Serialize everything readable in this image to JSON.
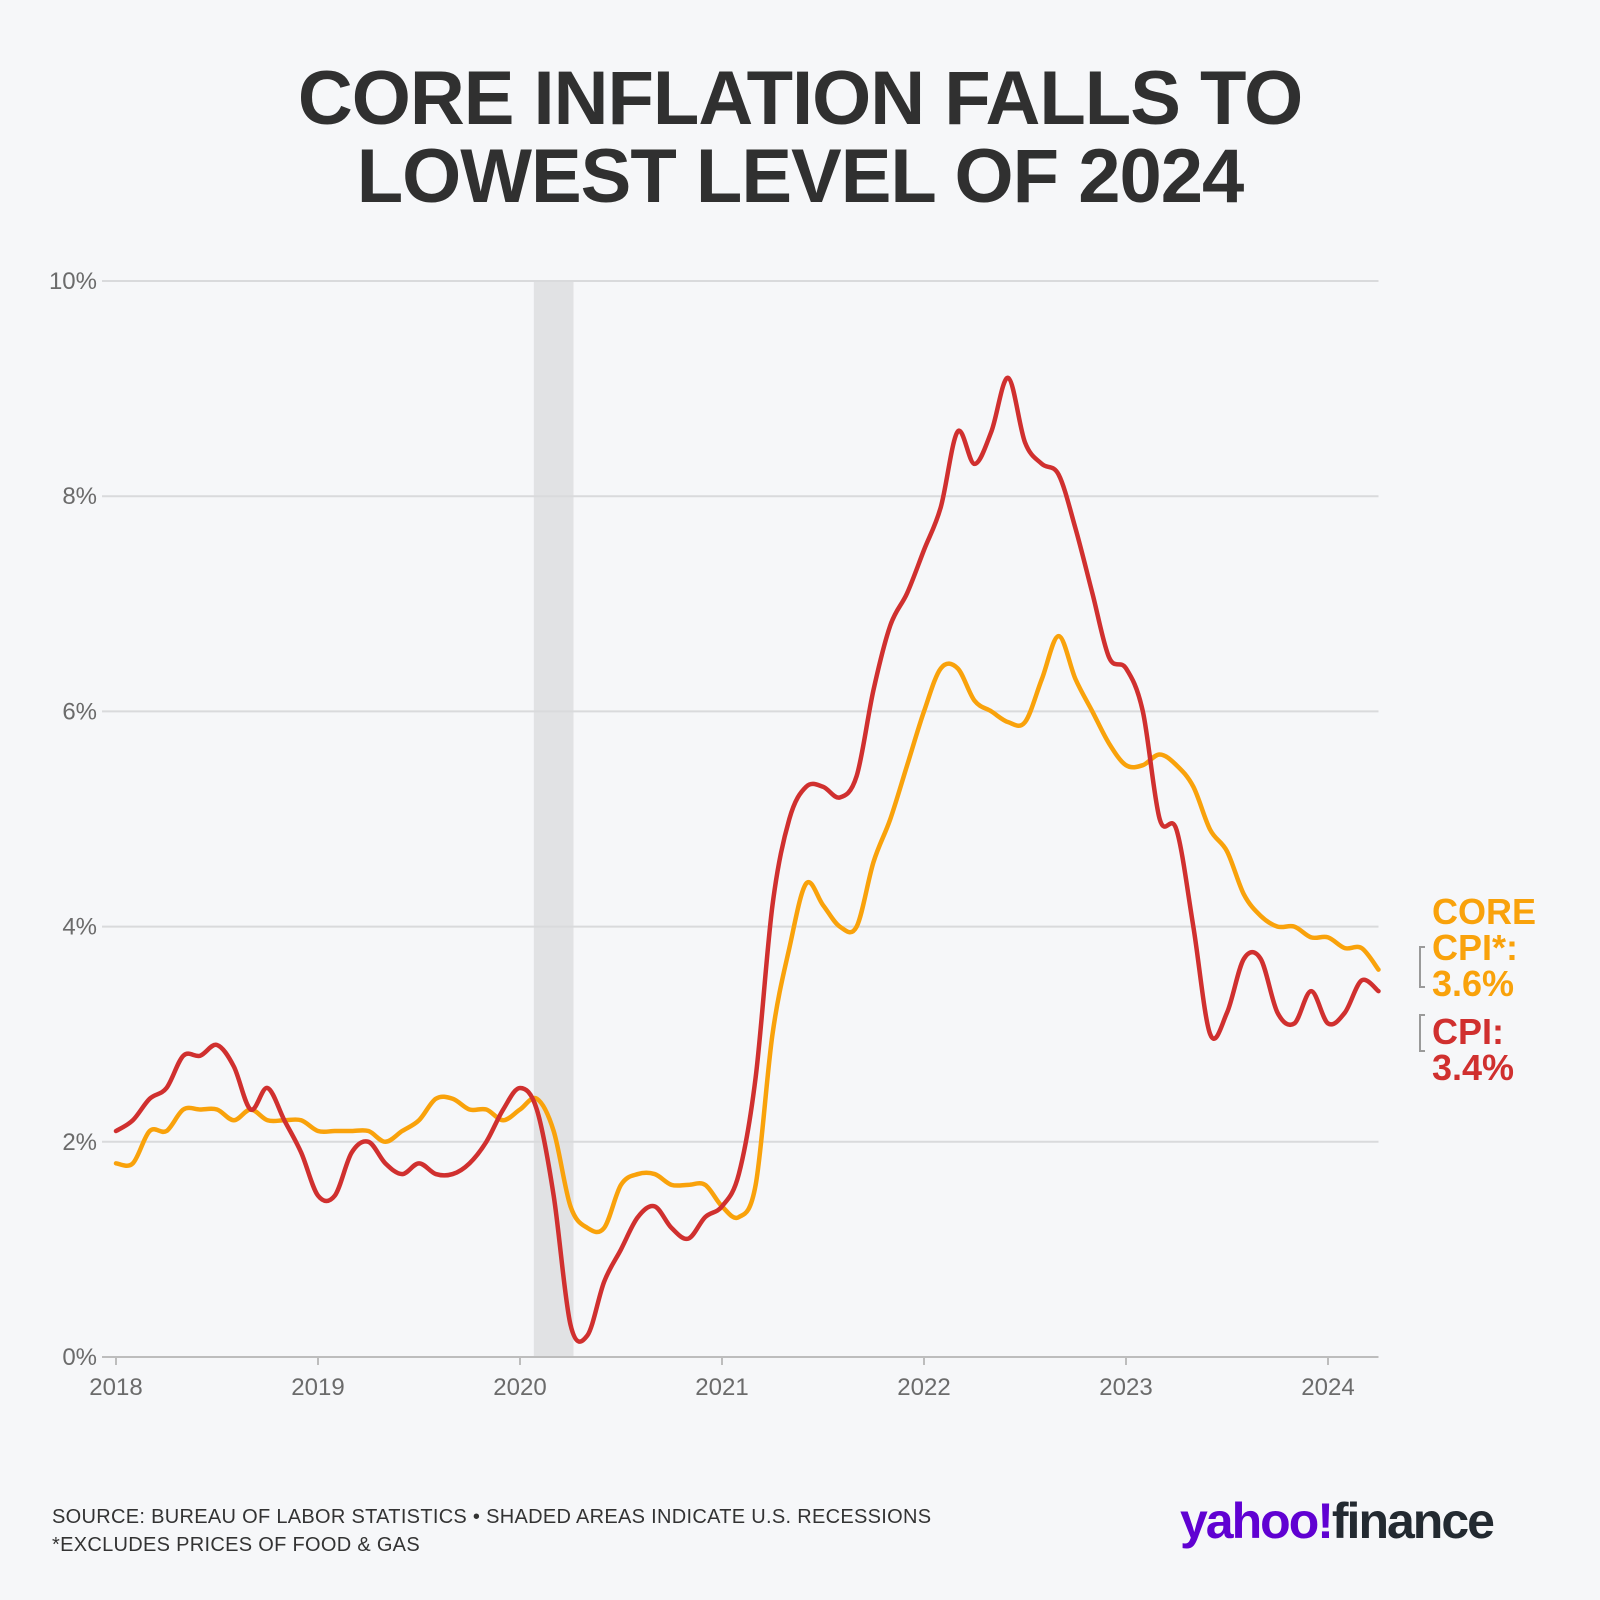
{
  "chart_data": {
    "type": "line",
    "title": [
      "CORE INFLATION FALLS TO",
      "LOWEST LEVEL OF 2024"
    ],
    "xlabel": "",
    "ylabel": "",
    "x_start": "2018-01",
    "x_end": "2024-04",
    "frequency": "monthly",
    "xticks": [
      "2018",
      "2019",
      "2020",
      "2021",
      "2022",
      "2023",
      "2024"
    ],
    "yticks": [
      "0%",
      "2%",
      "4%",
      "6%",
      "8%",
      "10%"
    ],
    "ylim": [
      0,
      10
    ],
    "grid": true,
    "recession_shading": {
      "start_month_index": 25,
      "end_month_index": 27
    },
    "series": [
      {
        "name": "CPI",
        "color": "#d0302f",
        "end_label": [
          "CPI:",
          "3.4%"
        ],
        "values": [
          2.1,
          2.2,
          2.4,
          2.5,
          2.8,
          2.8,
          2.9,
          2.7,
          2.3,
          2.5,
          2.2,
          1.9,
          1.5,
          1.5,
          1.9,
          2.0,
          1.8,
          1.7,
          1.8,
          1.7,
          1.7,
          1.8,
          2.0,
          2.3,
          2.5,
          2.3,
          1.5,
          0.3,
          0.2,
          0.7,
          1.0,
          1.3,
          1.4,
          1.2,
          1.1,
          1.3,
          1.4,
          1.7,
          2.6,
          4.2,
          5.0,
          5.3,
          5.3,
          5.2,
          5.4,
          6.2,
          6.8,
          7.1,
          7.5,
          7.9,
          8.6,
          8.3,
          8.6,
          9.1,
          8.5,
          8.3,
          8.2,
          7.7,
          7.1,
          6.5,
          6.4,
          6.0,
          5.0,
          4.9,
          4.0,
          3.0,
          3.2,
          3.7,
          3.7,
          3.2,
          3.1,
          3.4,
          3.1,
          3.2,
          3.5,
          3.4
        ]
      },
      {
        "name": "Core CPI*",
        "color": "#f9a20b",
        "end_label": [
          "CORE",
          "CPI*:",
          "3.6%"
        ],
        "values": [
          1.8,
          1.8,
          2.1,
          2.1,
          2.3,
          2.3,
          2.3,
          2.2,
          2.3,
          2.2,
          2.2,
          2.2,
          2.1,
          2.1,
          2.1,
          2.1,
          2.0,
          2.1,
          2.2,
          2.4,
          2.4,
          2.3,
          2.3,
          2.2,
          2.3,
          2.4,
          2.1,
          1.4,
          1.2,
          1.2,
          1.6,
          1.7,
          1.7,
          1.6,
          1.6,
          1.6,
          1.4,
          1.3,
          1.6,
          3.0,
          3.8,
          4.4,
          4.2,
          4.0,
          4.0,
          4.6,
          5.0,
          5.5,
          6.0,
          6.4,
          6.4,
          6.1,
          6.0,
          5.9,
          5.9,
          6.3,
          6.7,
          6.3,
          6.0,
          5.7,
          5.5,
          5.5,
          5.6,
          5.5,
          5.3,
          4.9,
          4.7,
          4.3,
          4.1,
          4.0,
          4.0,
          3.9,
          3.9,
          3.8,
          3.8,
          3.6
        ]
      }
    ]
  },
  "footer": {
    "source": "SOURCE: BUREAU OF LABOR STATISTICS • SHADED AREAS INDICATE U.S. RECESSIONS",
    "note": "*EXCLUDES PRICES OF FOOD & GAS"
  },
  "logo": {
    "yahoo": "yahoo!",
    "finance": "finance",
    "yahoo_color": "#6001d2",
    "finance_color": "#232a31"
  }
}
